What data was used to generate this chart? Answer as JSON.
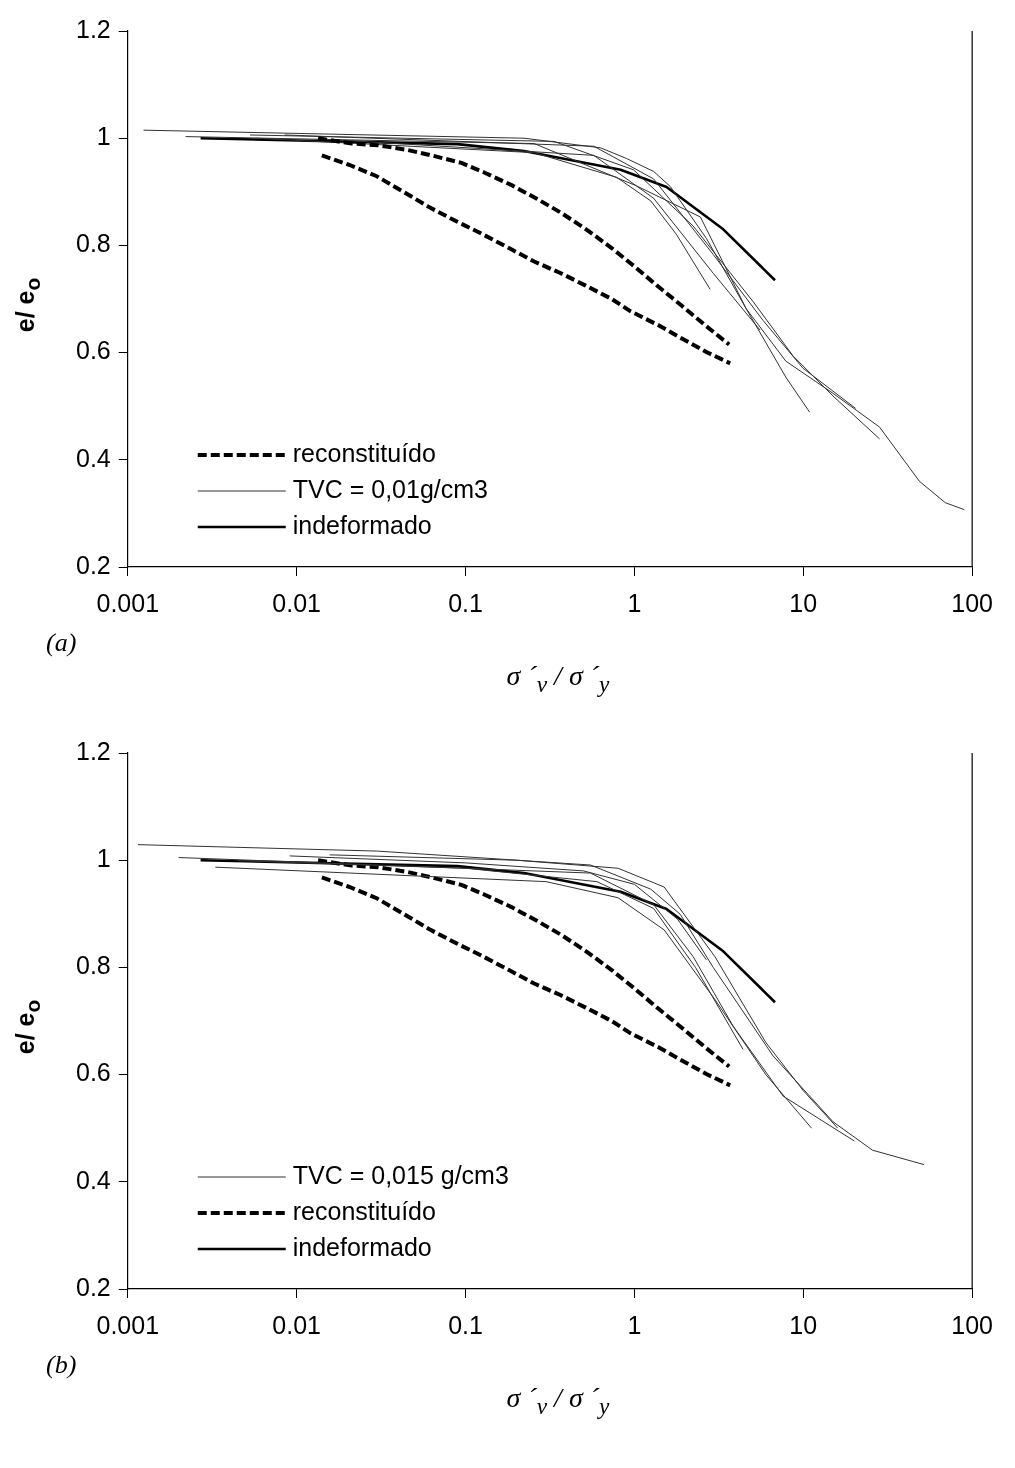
{
  "chart_data": [
    {
      "type": "line",
      "xlabel": "σ ´$_{v}$ / σ ´$_{y}$",
      "ylabel": "e/ e$_{o}$",
      "annotations": [
        "(a)"
      ],
      "xlim": [
        0.001,
        100
      ],
      "xticks": [
        0.001,
        0.01,
        0.1,
        1,
        10,
        100
      ],
      "ylim": [
        0.2,
        1.2
      ],
      "yticks": [
        0.2,
        0.4,
        0.6,
        0.8,
        1,
        1.2
      ],
      "log": "x",
      "grid": false,
      "legend": "bottom left",
      "marker": "none",
      "series": [
        {
          "name": "reconstituído",
          "color": "#000000",
          "line_style": "dashed",
          "x": [
            0.0134,
            0.0212,
            0.0302,
            0.0454,
            0.0628,
            0.0945,
            0.129,
            0.186,
            0.261,
            0.372,
            0.523,
            0.734,
            0.989,
            1.35,
            1.9,
            2.67,
            3.64
          ],
          "values": [
            1.0,
            0.99,
            0.987,
            0.978,
            0.968,
            0.954,
            0.936,
            0.913,
            0.888,
            0.86,
            0.829,
            0.795,
            0.762,
            0.726,
            0.688,
            0.649,
            0.615
          ]
        },
        {
          "color": "#000000",
          "line_style": "dashed",
          "x": [
            0.0141,
            0.0206,
            0.0298,
            0.0424,
            0.0612,
            0.0895,
            0.126,
            0.181,
            0.255,
            0.367,
            0.515,
            0.734,
            0.95,
            1.39,
            1.87,
            2.67,
            3.69
          ],
          "values": [
            0.968,
            0.95,
            0.929,
            0.901,
            0.871,
            0.844,
            0.821,
            0.795,
            0.77,
            0.748,
            0.725,
            0.7,
            0.677,
            0.651,
            0.628,
            0.601,
            0.58
          ]
        },
        {
          "name": "TVC = 0,01g/cm3",
          "color": "#333333",
          "line_style": "solid",
          "x": [
            0.00124,
            0.222,
            0.632,
            0.9,
            1.3,
            1.63,
            2.67,
            4.59,
            7.89,
            15,
            28.3,
            48.7,
            69.3,
            89.8
          ],
          "values": [
            1.015,
            1.0,
            0.982,
            0.962,
            0.938,
            0.91,
            0.813,
            0.682,
            0.584,
            0.524,
            0.461,
            0.36,
            0.32,
            0.307
          ]
        },
        {
          "color": "#333333",
          "line_style": "solid",
          "x": [
            0.0057,
            0.255,
            0.785,
            1.25,
            1.77,
            2.81
          ],
          "values": [
            1.0,
            0.973,
            0.927,
            0.883,
            0.821,
            0.718
          ]
        },
        {
          "color": "#333333",
          "line_style": "solid",
          "x": [
            0.0022,
            0.255,
            1.03,
            2.46,
            4.59,
            7.89,
            10.9
          ],
          "values": [
            1.003,
            0.99,
            0.911,
            0.853,
            0.682,
            0.554,
            0.489
          ]
        },
        {
          "color": "#333333",
          "line_style": "solid",
          "x": [
            0.0053,
            0.334,
            0.989,
            2.23,
            5.05,
            8.69,
            15,
            28.3
          ],
          "values": [
            1.006,
            0.994,
            0.941,
            0.836,
            0.695,
            0.594,
            0.519,
            0.439
          ]
        },
        {
          "color": "#333333",
          "line_style": "solid",
          "x": [
            0.0085,
            0.575,
            1.3,
            2.93,
            5.78,
            9.95,
            20.4
          ],
          "values": [
            1.006,
            0.985,
            0.924,
            0.783,
            0.66,
            0.571,
            0.496
          ]
        },
        {
          "color": "#333333",
          "line_style": "solid",
          "x": [
            0.0147,
            0.575,
            1.3,
            2.93,
            5.55
          ],
          "values": [
            0.998,
            0.968,
            0.888,
            0.748,
            0.642
          ]
        },
        {
          "name": "indeformado",
          "color": "#000000",
          "line_style": "solid",
          "x": [
            0.0027,
            0.0895,
            0.222,
            0.829,
            1.55,
            3.36,
            6.8
          ],
          "values": [
            1.0,
            0.989,
            0.976,
            0.941,
            0.909,
            0.83,
            0.735
          ]
        }
      ]
    },
    {
      "type": "line",
      "xlabel": "σ ´$_{v}$ / σ ´$_{y}$",
      "ylabel": "e/ e$_{o}$",
      "annotations": [
        "(b)"
      ],
      "xlim": [
        0.001,
        100
      ],
      "xticks": [
        0.001,
        0.01,
        0.1,
        1,
        10,
        100
      ],
      "ylim": [
        0.2,
        1.2
      ],
      "yticks": [
        0.2,
        0.4,
        0.6,
        0.8,
        1,
        1.2
      ],
      "log": "x",
      "grid": false,
      "legend": "bottom left",
      "marker": "none",
      "series": [
        {
          "name": "TVC = 0,015 g/cm3",
          "color": "#333333",
          "line_style": "solid",
          "x": [
            0.00115,
            0.03,
            0.55,
            1.25,
            1.87,
            2.93,
            6.62,
            15,
            25.7,
            52
          ],
          "values": [
            1.029,
            1.017,
            0.991,
            0.946,
            0.899,
            0.8,
            0.635,
            0.512,
            0.459,
            0.432
          ]
        },
        {
          "color": "#333333",
          "line_style": "solid",
          "x": [
            0.002,
            0.55,
            1.3,
            2.23,
            3.85,
            7.59,
            20.1
          ],
          "values": [
            1.005,
            0.976,
            0.917,
            0.82,
            0.69,
            0.56,
            0.476
          ]
        },
        {
          "color": "#333333",
          "line_style": "solid",
          "x": [
            0.0033,
            0.3,
            0.8,
            1.5,
            3,
            6,
            11.2
          ],
          "values": [
            0.987,
            0.96,
            0.93,
            0.87,
            0.74,
            0.6,
            0.5
          ]
        },
        {
          "color": "#333333",
          "line_style": "solid",
          "x": [
            0.0045,
            0.1,
            0.6,
            1.3,
            2.3,
            4.4
          ],
          "values": [
            0.999,
            0.985,
            0.96,
            0.91,
            0.8,
            0.647
          ]
        },
        {
          "color": "#333333",
          "line_style": "solid",
          "x": [
            0.0091,
            0.1,
            0.5,
            1,
            1.8,
            2.67
          ],
          "values": [
            1.008,
            0.995,
            0.98,
            0.955,
            0.89,
            0.814
          ]
        },
        {
          "color": "#333333",
          "line_style": "solid",
          "x": [
            0.0157,
            0.2,
            0.8,
            1.5,
            3,
            6,
            10,
            16
          ],
          "values": [
            1.01,
            1.0,
            0.985,
            0.95,
            0.82,
            0.66,
            0.57,
            0.5
          ]
        },
        {
          "name": "reconstituído",
          "color": "#000000",
          "line_style": "dashed",
          "x": [
            0.0134,
            0.0212,
            0.0302,
            0.0454,
            0.0628,
            0.0945,
            0.129,
            0.186,
            0.261,
            0.372,
            0.523,
            0.734,
            0.989,
            1.35,
            1.9,
            2.67,
            3.64
          ],
          "values": [
            1.0,
            0.99,
            0.987,
            0.978,
            0.968,
            0.954,
            0.936,
            0.913,
            0.888,
            0.86,
            0.829,
            0.795,
            0.762,
            0.726,
            0.688,
            0.649,
            0.615
          ]
        },
        {
          "color": "#000000",
          "line_style": "dashed",
          "x": [
            0.0141,
            0.0206,
            0.0298,
            0.0424,
            0.0612,
            0.0895,
            0.126,
            0.181,
            0.255,
            0.367,
            0.515,
            0.734,
            0.95,
            1.39,
            1.87,
            2.67,
            3.69
          ],
          "values": [
            0.968,
            0.95,
            0.929,
            0.901,
            0.871,
            0.844,
            0.821,
            0.795,
            0.77,
            0.748,
            0.725,
            0.7,
            0.677,
            0.651,
            0.628,
            0.601,
            0.58
          ]
        },
        {
          "name": "indeformado",
          "color": "#000000",
          "line_style": "solid",
          "x": [
            0.0027,
            0.0895,
            0.222,
            0.829,
            1.55,
            3.36,
            6.8
          ],
          "values": [
            1.0,
            0.989,
            0.976,
            0.941,
            0.909,
            0.83,
            0.735
          ]
        }
      ]
    }
  ]
}
